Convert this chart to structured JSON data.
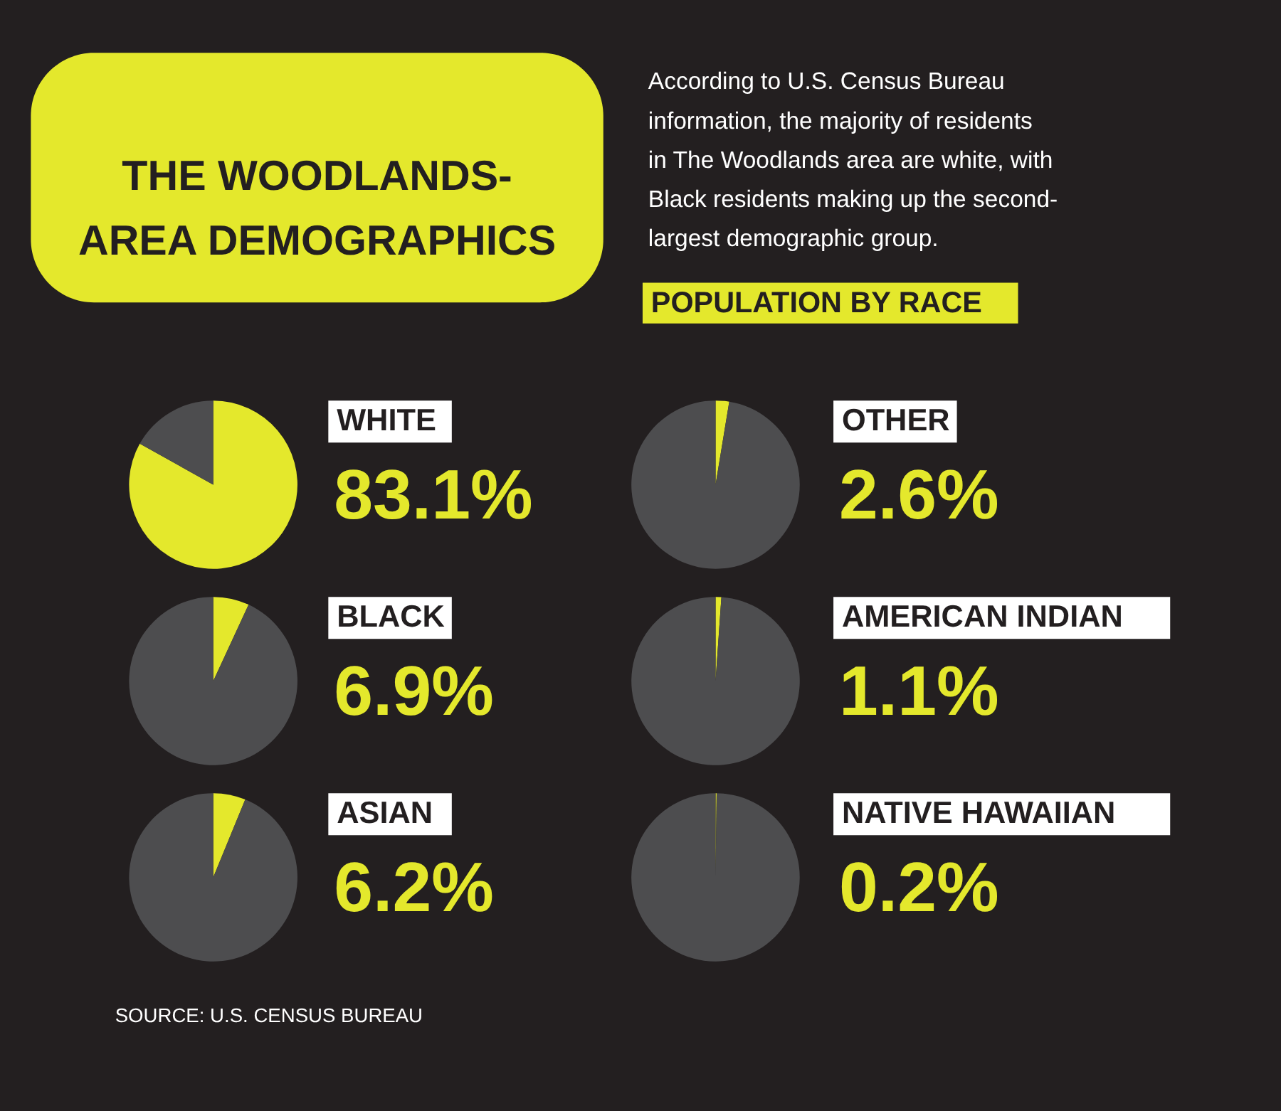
{
  "chart_data": [
    {
      "type": "other",
      "title": "THE WOODLANDS-AREA DEMOGRAPHICS",
      "subtitle": "According to U.S. Census Bureau information, the majority of residents in The Woodlands area are white, with Black residents making up the second-largest demographic group.",
      "annotations": [
        "POPULATION BY RACE",
        "SOURCE: U.S. CENSUS BUREAU"
      ]
    },
    {
      "type": "pie",
      "title": "WHITE",
      "subtitle": "83.1%",
      "categories": [
        null,
        null
      ],
      "values": [
        83.1,
        16.9
      ],
      "colors": [
        "#e4e82c",
        "#4d4d4f"
      ]
    },
    {
      "type": "pie",
      "title": "OTHER",
      "subtitle": "2.6%",
      "categories": [
        null,
        null
      ],
      "values": [
        2.6,
        97.4
      ],
      "colors": [
        "#e4e82c",
        "#4d4d4f"
      ]
    },
    {
      "type": "pie",
      "title": "BLACK",
      "subtitle": "6.9%",
      "categories": [
        null,
        null
      ],
      "values": [
        6.9,
        93.1
      ],
      "colors": [
        "#e4e82c",
        "#4d4d4f"
      ]
    },
    {
      "type": "pie",
      "title": "AMERICAN INDIAN",
      "subtitle": "1.1%",
      "categories": [
        null,
        null
      ],
      "values": [
        1.1,
        98.9
      ],
      "colors": [
        "#e4e82c",
        "#4d4d4f"
      ]
    },
    {
      "type": "pie",
      "title": "ASIAN",
      "subtitle": "6.2%",
      "categories": [
        null,
        null
      ],
      "values": [
        6.2,
        93.8
      ],
      "colors": [
        "#e4e82c",
        "#4d4d4f"
      ]
    },
    {
      "type": "pie",
      "title": "NATIVE HAWAIIAN",
      "subtitle": "0.2%",
      "categories": [
        null,
        null
      ],
      "values": [
        0.2,
        99.8
      ],
      "colors": [
        "#e4e82c",
        "#4d4d4f"
      ]
    }
  ]
}
